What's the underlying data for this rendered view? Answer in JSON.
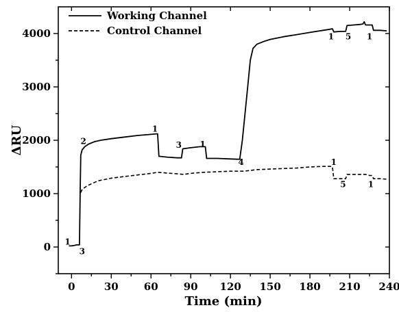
{
  "chart_data": {
    "type": "line",
    "title": "",
    "xlabel": "Time (min)",
    "ylabel": "ΔRU",
    "xlim": [
      -10,
      240
    ],
    "ylim": [
      -500,
      4500
    ],
    "xticks": [
      0,
      30,
      60,
      90,
      120,
      150,
      180,
      210,
      240
    ],
    "yticks": [
      0,
      1000,
      2000,
      3000,
      4000
    ],
    "grid": false,
    "legend": {
      "placement": "top-left"
    },
    "series": [
      {
        "name": "Working Channel",
        "style": "solid",
        "points": [
          [
            -2,
            20
          ],
          [
            0,
            20
          ],
          [
            2,
            30
          ],
          [
            4,
            40
          ],
          [
            6,
            40
          ],
          [
            6.5,
            1000
          ],
          [
            7,
            1720
          ],
          [
            8,
            1820
          ],
          [
            10,
            1880
          ],
          [
            13,
            1930
          ],
          [
            17,
            1970
          ],
          [
            22,
            2000
          ],
          [
            30,
            2030
          ],
          [
            40,
            2060
          ],
          [
            50,
            2090
          ],
          [
            60,
            2110
          ],
          [
            64,
            2120
          ],
          [
            65,
            2120
          ],
          [
            66,
            1700
          ],
          [
            72,
            1685
          ],
          [
            80,
            1670
          ],
          [
            83,
            1670
          ],
          [
            84,
            1840
          ],
          [
            90,
            1860
          ],
          [
            97,
            1880
          ],
          [
            101,
            1880
          ],
          [
            102,
            1660
          ],
          [
            110,
            1660
          ],
          [
            120,
            1650
          ],
          [
            125,
            1645
          ],
          [
            127,
            1645
          ],
          [
            129,
            2000
          ],
          [
            131,
            2500
          ],
          [
            133,
            3000
          ],
          [
            135,
            3500
          ],
          [
            137,
            3720
          ],
          [
            140,
            3800
          ],
          [
            145,
            3850
          ],
          [
            150,
            3890
          ],
          [
            160,
            3940
          ],
          [
            170,
            3980
          ],
          [
            180,
            4020
          ],
          [
            190,
            4060
          ],
          [
            195,
            4080
          ],
          [
            197,
            4090
          ],
          [
            198,
            4030
          ],
          [
            203,
            4040
          ],
          [
            207,
            4040
          ],
          [
            208,
            4150
          ],
          [
            213,
            4160
          ],
          [
            218,
            4170
          ],
          [
            220,
            4180
          ],
          [
            221,
            4220
          ],
          [
            222,
            4160
          ],
          [
            225,
            4160
          ],
          [
            227,
            4160
          ],
          [
            228,
            4060
          ],
          [
            233,
            4060
          ],
          [
            238,
            4050
          ]
        ]
      },
      {
        "name": "Control Channel",
        "style": "dashed",
        "points": [
          [
            7,
            1020
          ],
          [
            8,
            1080
          ],
          [
            12,
            1150
          ],
          [
            20,
            1240
          ],
          [
            30,
            1290
          ],
          [
            40,
            1320
          ],
          [
            50,
            1350
          ],
          [
            60,
            1380
          ],
          [
            65,
            1400
          ],
          [
            70,
            1390
          ],
          [
            80,
            1370
          ],
          [
            85,
            1360
          ],
          [
            90,
            1380
          ],
          [
            100,
            1400
          ],
          [
            110,
            1410
          ],
          [
            120,
            1420
          ],
          [
            130,
            1420
          ],
          [
            140,
            1450
          ],
          [
            150,
            1460
          ],
          [
            160,
            1470
          ],
          [
            170,
            1480
          ],
          [
            180,
            1500
          ],
          [
            190,
            1510
          ],
          [
            196,
            1510
          ],
          [
            197,
            1500
          ],
          [
            198,
            1280
          ],
          [
            203,
            1280
          ],
          [
            207,
            1280
          ],
          [
            208,
            1360
          ],
          [
            215,
            1360
          ],
          [
            222,
            1360
          ],
          [
            225,
            1340
          ],
          [
            227,
            1340
          ],
          [
            228,
            1280
          ],
          [
            233,
            1280
          ],
          [
            238,
            1270
          ]
        ]
      }
    ],
    "annotations": [
      {
        "text": "1",
        "x": -3,
        "y": 95
      },
      {
        "text": "3",
        "x": 8,
        "y": -85
      },
      {
        "text": "2",
        "x": 9,
        "y": 1980
      },
      {
        "text": "1",
        "x": 63,
        "y": 2210
      },
      {
        "text": "3",
        "x": 81,
        "y": 1910
      },
      {
        "text": "1",
        "x": 99,
        "y": 1920
      },
      {
        "text": "4",
        "x": 128,
        "y": 1590
      },
      {
        "text": "1",
        "x": 198,
        "y": 1590
      },
      {
        "text": "5",
        "x": 205,
        "y": 1170
      },
      {
        "text": "1",
        "x": 226,
        "y": 1170
      },
      {
        "text": "1",
        "x": 196,
        "y": 3940
      },
      {
        "text": "5",
        "x": 209,
        "y": 3940
      },
      {
        "text": "1",
        "x": 225,
        "y": 3940
      }
    ]
  }
}
